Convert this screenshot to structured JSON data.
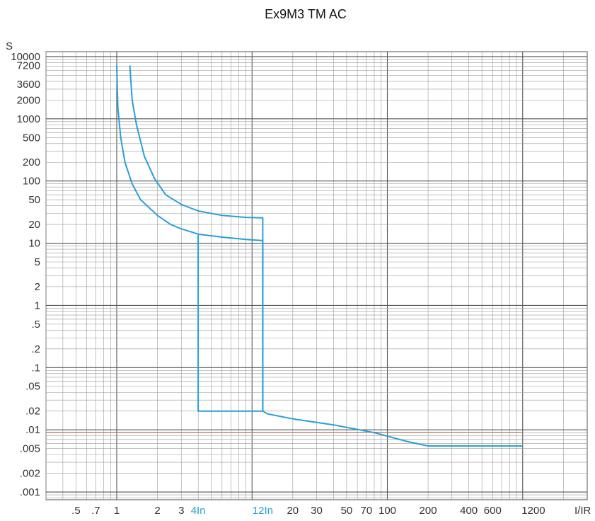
{
  "chart_data": {
    "type": "line",
    "title": "Ex9M3 TM AC",
    "xlabel": "I/IR",
    "ylabel": "S",
    "xscale": "log",
    "yscale": "log",
    "xlim": [
      0.3,
      3000
    ],
    "ylim": [
      0.00075,
      12000
    ],
    "grid": true,
    "x_ticks": [
      {
        "label": ".5",
        "value": 0.5
      },
      {
        "label": ".7",
        "value": 0.7
      },
      {
        "label": "1",
        "value": 1
      },
      {
        "label": "2",
        "value": 2
      },
      {
        "label": "3",
        "value": 3
      },
      {
        "label": "4In",
        "value": 4,
        "highlight": true
      },
      {
        "label": "12In",
        "value": 12,
        "highlight": true
      },
      {
        "label": "20",
        "value": 20
      },
      {
        "label": "30",
        "value": 30
      },
      {
        "label": "50",
        "value": 50
      },
      {
        "label": "70",
        "value": 70
      },
      {
        "label": "100",
        "value": 100
      },
      {
        "label": "200",
        "value": 200
      },
      {
        "label": "400",
        "value": 400
      },
      {
        "label": "600",
        "value": 600
      },
      {
        "label": "1200",
        "value": 1200
      }
    ],
    "y_ticks": [
      {
        "label": "10000",
        "value": 10000
      },
      {
        "label": "7200",
        "value": 7200
      },
      {
        "label": "3600",
        "value": 3600
      },
      {
        "label": "2000",
        "value": 2000
      },
      {
        "label": "1000",
        "value": 1000
      },
      {
        "label": "500",
        "value": 500
      },
      {
        "label": "200",
        "value": 200
      },
      {
        "label": "100",
        "value": 100
      },
      {
        "label": "50",
        "value": 50
      },
      {
        "label": "20",
        "value": 20
      },
      {
        "label": "10",
        "value": 10
      },
      {
        "label": "5",
        "value": 5
      },
      {
        "label": "2",
        "value": 2
      },
      {
        "label": "1",
        "value": 1
      },
      {
        "label": ".5",
        "value": 0.5
      },
      {
        "label": ".2",
        "value": 0.2
      },
      {
        "label": ".1",
        "value": 0.1
      },
      {
        "label": ".05",
        "value": 0.05
      },
      {
        "label": ".02",
        "value": 0.02
      },
      {
        "label": ".01",
        "value": 0.01
      },
      {
        "label": ".005",
        "value": 0.005
      },
      {
        "label": ".002",
        "value": 0.002
      },
      {
        "label": ".001",
        "value": 0.001
      }
    ],
    "series": [
      {
        "values": [
          [
            1.0,
            7200
          ],
          [
            1.02,
            1500
          ],
          [
            1.07,
            500
          ],
          [
            1.15,
            200
          ],
          [
            1.3,
            90
          ],
          [
            1.5,
            50
          ],
          [
            2.0,
            28
          ],
          [
            2.5,
            20
          ],
          [
            3.0,
            17
          ],
          [
            4.0,
            14
          ],
          [
            6.0,
            12.5
          ],
          [
            9.0,
            11.5
          ],
          [
            12.0,
            11
          ],
          [
            12.0,
            0.02
          ],
          [
            4.0,
            0.02
          ],
          [
            4.0,
            14
          ]
        ]
      },
      {
        "values": [
          [
            1.25,
            7200
          ],
          [
            1.3,
            2000
          ],
          [
            1.4,
            800
          ],
          [
            1.6,
            250
          ],
          [
            1.9,
            110
          ],
          [
            2.3,
            60
          ],
          [
            3.0,
            42
          ],
          [
            4.0,
            33
          ],
          [
            6.0,
            28
          ],
          [
            9.0,
            26
          ],
          [
            12.0,
            25.5
          ],
          [
            12.0,
            0.02
          ],
          [
            13.0,
            0.018
          ],
          [
            20.0,
            0.015
          ],
          [
            40.0,
            0.012
          ],
          [
            80.0,
            0.009
          ],
          [
            140.0,
            0.0065
          ],
          [
            200.0,
            0.0055
          ],
          [
            300.0,
            0.0055
          ],
          [
            600.0,
            0.0055
          ],
          [
            1000.0,
            0.0055
          ]
        ]
      }
    ],
    "colors": {
      "curve": "#2a9fd6",
      "grid": "#9a9a9a",
      "grid_major": "#555555",
      "reference": "#c8603a"
    },
    "reference_line_y": 0.0092
  }
}
